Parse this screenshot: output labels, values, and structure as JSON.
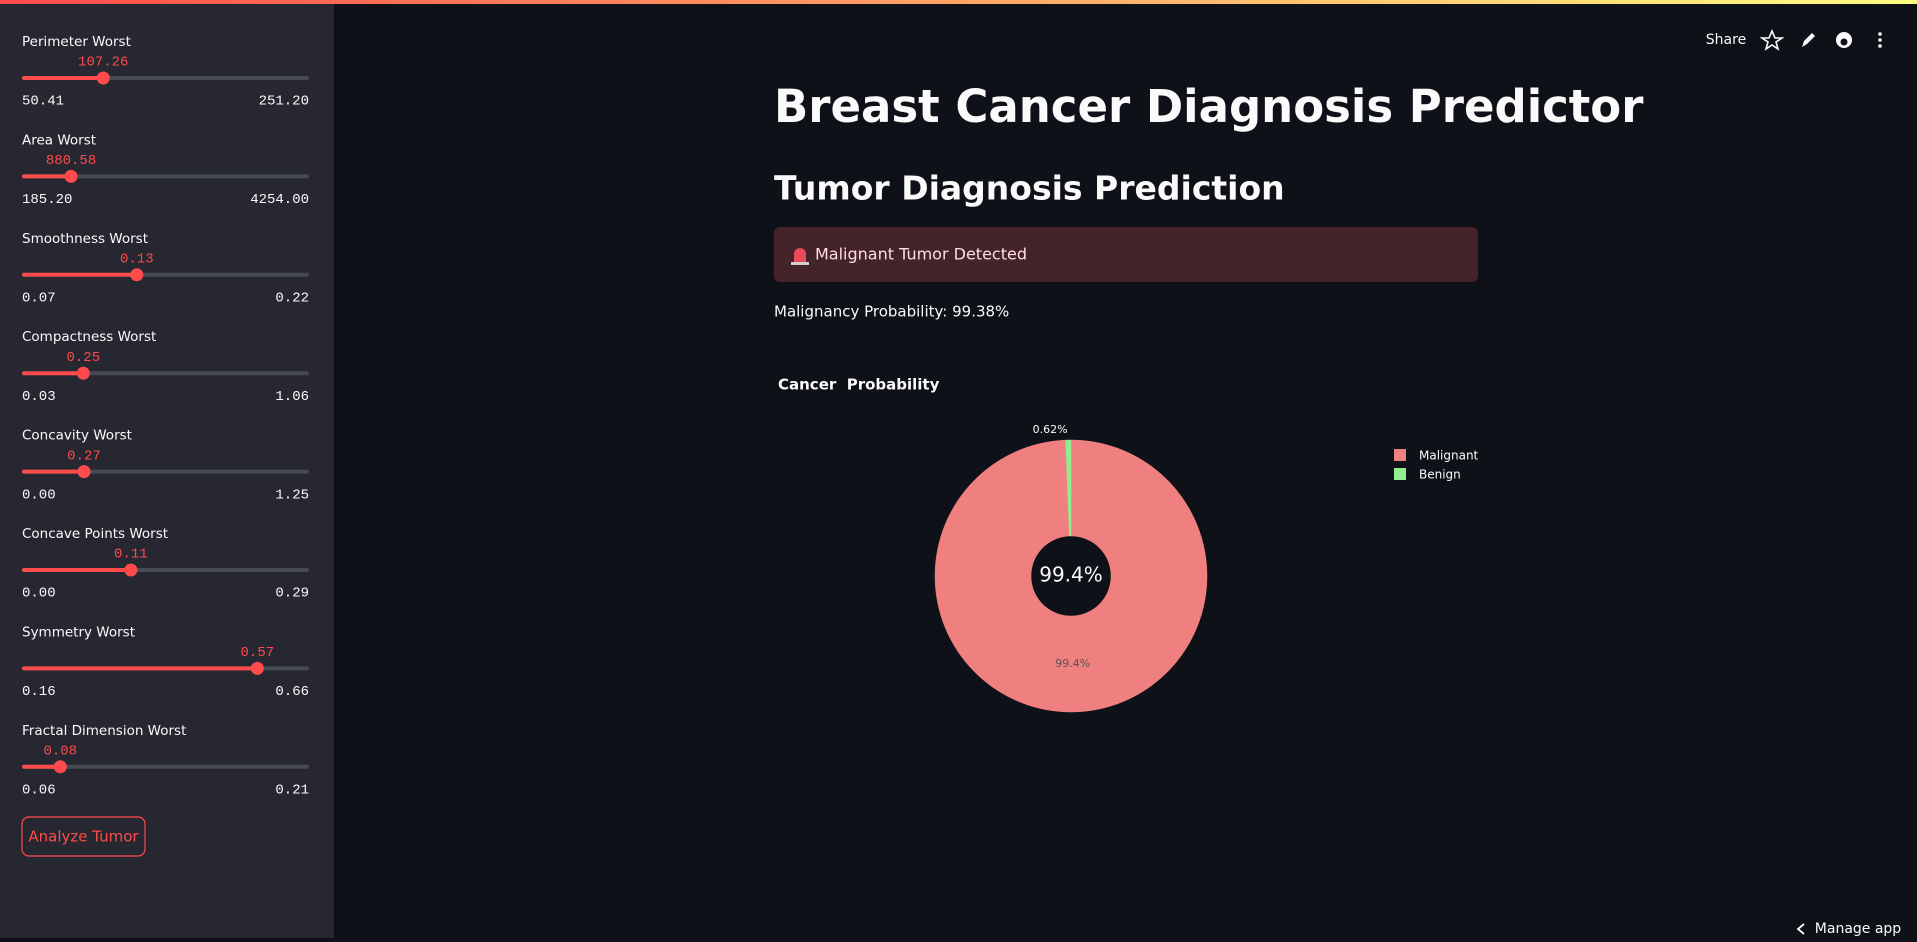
{
  "sidebar": {
    "sliders": [
      {
        "label": "Perimeter Worst",
        "value": 107.26,
        "min": 50.41,
        "max": {
          "value": 251.2,
          "label": "251.20"
        }
      },
      {
        "label": "Area Worst",
        "value": 880.58,
        "min": {
          "value": 185.2,
          "label": "185.20"
        },
        "max": {
          "value": 4254,
          "label": "4254.00"
        }
      },
      {
        "label": "Smoothness Worst",
        "value": 0.13,
        "min": 0.07,
        "max": 0.22
      },
      {
        "label": "Compactness Worst",
        "value": 0.25,
        "min": 0.03,
        "max": 1.06
      },
      {
        "label": "Concavity Worst",
        "value": 0.27,
        "min": {
          "value": 0,
          "label": "0.00"
        },
        "max": 1.25
      },
      {
        "label": "Concave Points Worst",
        "value": 0.11,
        "min": {
          "value": 0,
          "label": "0.00"
        },
        "max": 0.29
      },
      {
        "label": "Symmetry Worst",
        "value": 0.57,
        "min": 0.16,
        "max": 0.66
      },
      {
        "label": "Fractal Dimension Worst",
        "value": 0.08,
        "min": 0.06,
        "max": 0.21
      }
    ],
    "button": "Analyze Tumor"
  },
  "header": {
    "share": "Share"
  },
  "main": {
    "title": "Breast Cancer Diagnosis Predictor",
    "subheader": "Tumor Diagnosis Prediction",
    "alert": "Malignant Tumor Detected",
    "probability_text": "Malignancy Probability: 99.38%"
  },
  "chart_data": {
    "type": "pie",
    "title": "Cancer  Probability",
    "categories": [
      "Malignant",
      "Benign"
    ],
    "values": [
      99.38,
      0.62
    ],
    "value_labels": [
      "99.4%",
      "0.62%"
    ],
    "colors": [
      "#f08080",
      "#90ee90"
    ],
    "center_label": "99.4%"
  },
  "footer": {
    "manage": "Manage app"
  }
}
